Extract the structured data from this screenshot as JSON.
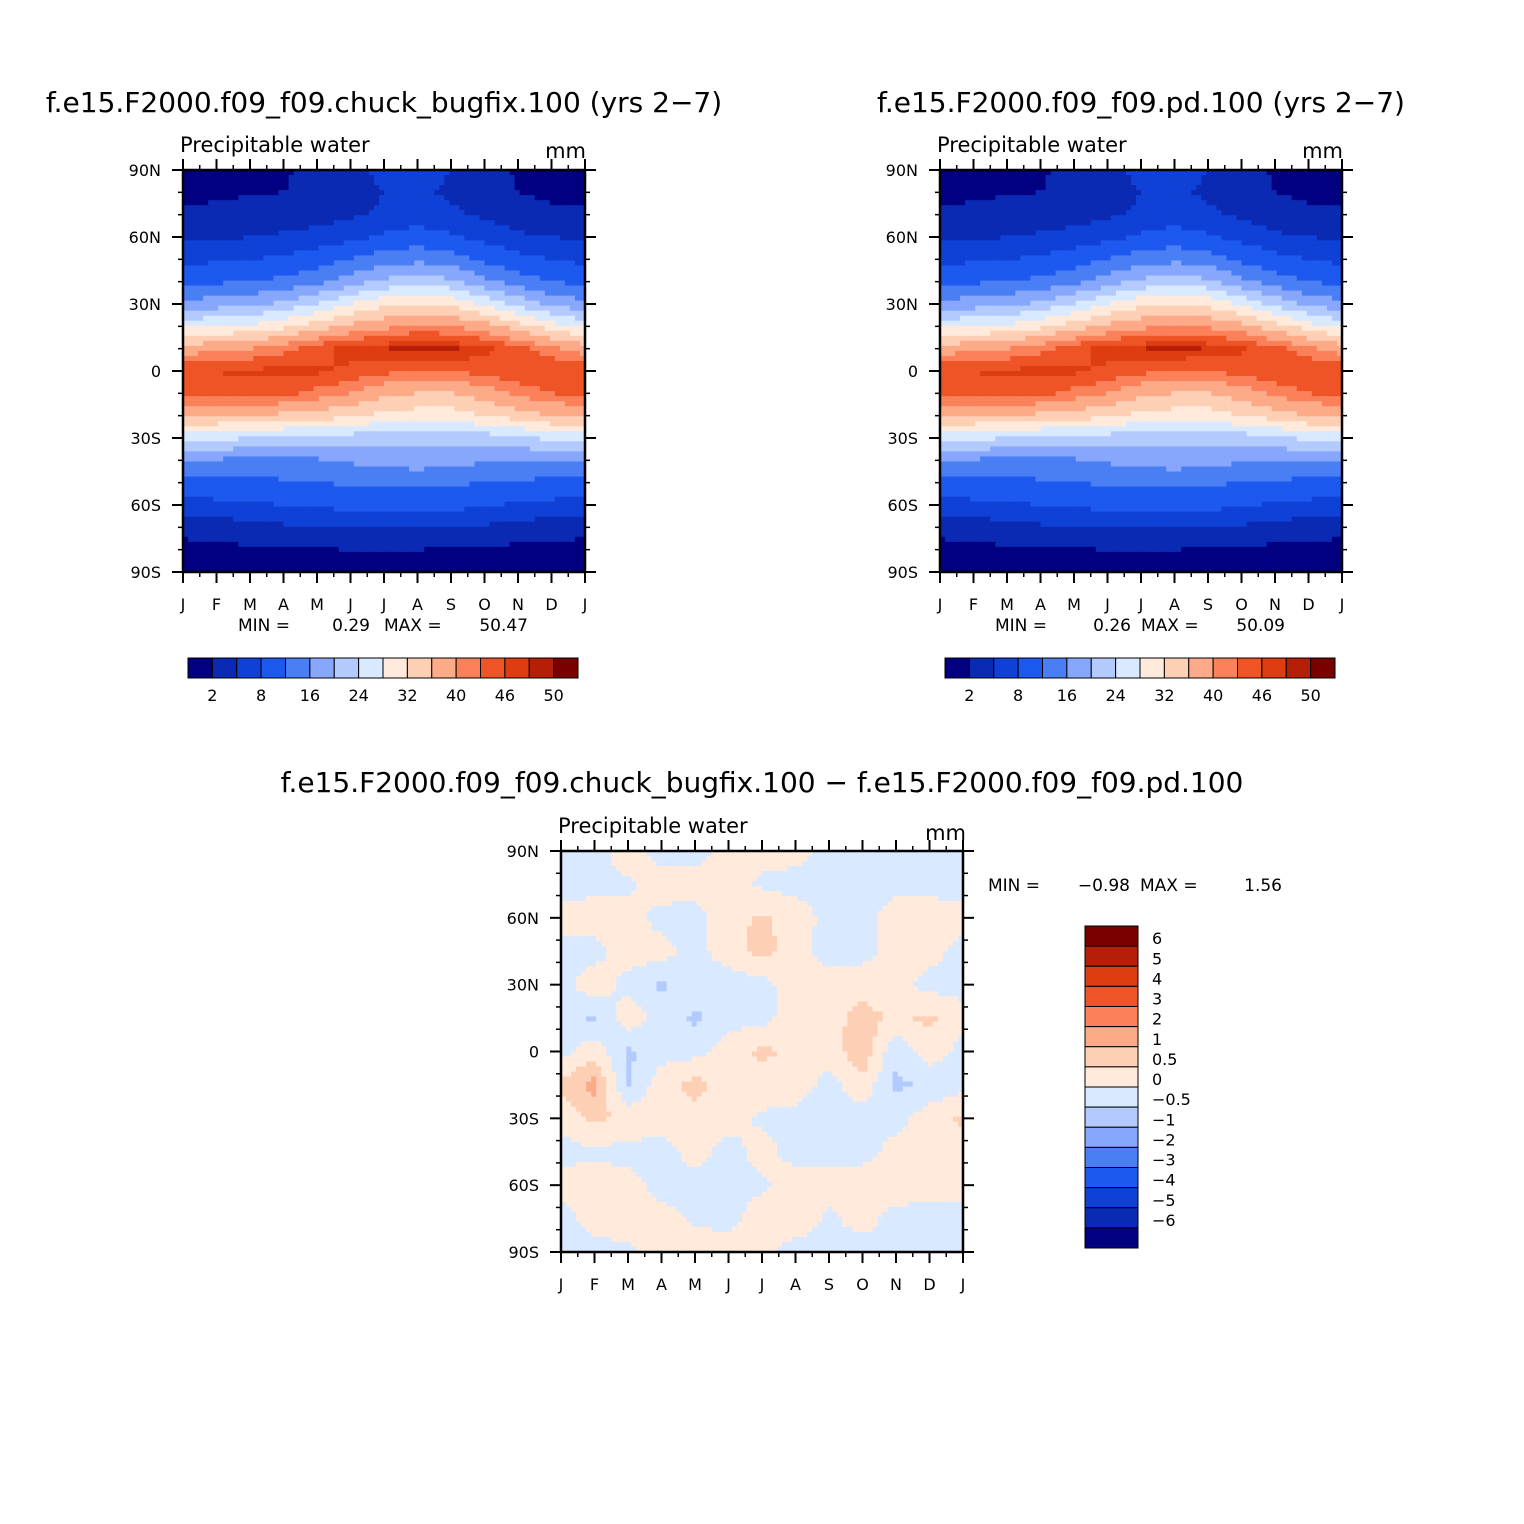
{
  "colors": {
    "abs_scale": [
      "#000080",
      "#0a2ab3",
      "#0f41d7",
      "#1d58ef",
      "#4a7ef5",
      "#86a7fb",
      "#b3caff",
      "#d9e9ff",
      "#ffeadb",
      "#fdcfb5",
      "#fcaa87",
      "#fa815a",
      "#ef5427",
      "#dd3d10",
      "#b51f07",
      "#7a0000"
    ],
    "diff_scale": [
      "#000080",
      "#0a2ab3",
      "#0f41d7",
      "#1d58ef",
      "#4a7ef5",
      "#86a7fb",
      "#b3caff",
      "#d9e9ff",
      "#ffeadb",
      "#fdcfb5",
      "#fcaa87",
      "#fa815a",
      "#ef5427",
      "#dd3d10",
      "#b51f07",
      "#7a0000"
    ]
  },
  "chart_data": [
    {
      "type": "heatmap",
      "title": "f.e15.F2000.f09_f09.chuck_bugfix.100 (yrs 2−7)",
      "subtitle": "Precipitable water",
      "units": "mm",
      "x_ticks": [
        "J",
        "F",
        "M",
        "A",
        "M",
        "J",
        "J",
        "A",
        "S",
        "O",
        "N",
        "D",
        "J"
      ],
      "y_ticks": [
        "90N",
        "60N",
        "30N",
        "0",
        "30S",
        "60S",
        "90S"
      ],
      "ylim": [
        -90,
        90
      ],
      "stats": {
        "min_label": "MIN =",
        "min": "0.29",
        "max_label": "MAX =",
        "max": "50.47"
      },
      "colorbar_labels": [
        "2",
        "8",
        "16",
        "24",
        "32",
        "40",
        "46",
        "50"
      ],
      "latitudes": [
        -90,
        -80,
        -70,
        -60,
        -50,
        -40,
        -30,
        -20,
        -10,
        0,
        10,
        20,
        30,
        40,
        50,
        60,
        70,
        80,
        90
      ],
      "months": [
        "J",
        "F",
        "M",
        "A",
        "M",
        "J",
        "J",
        "A",
        "S",
        "O",
        "N",
        "D",
        "J"
      ],
      "values": [
        [
          0.3,
          0.3,
          0.3,
          0.3,
          0.3,
          0.3,
          0.3,
          0.3,
          0.3,
          0.3,
          0.3,
          0.3,
          0.3
        ],
        [
          1,
          1.2,
          1.6,
          1.8,
          1.9,
          2,
          2,
          2,
          1.8,
          1.6,
          1.2,
          1,
          1
        ],
        [
          3,
          3.5,
          4,
          4.5,
          4.8,
          5,
          5,
          5,
          4.8,
          4.5,
          4,
          3.5,
          3
        ],
        [
          6.5,
          7,
          7.5,
          8,
          8.5,
          9,
          9.5,
          9.5,
          9,
          8.5,
          7.5,
          7,
          6.5
        ],
        [
          10.5,
          11,
          11,
          11.5,
          12,
          12.5,
          13,
          13,
          12.5,
          12,
          11.5,
          11,
          10.5
        ],
        [
          16,
          15.5,
          15,
          15,
          15.5,
          16.5,
          17.5,
          18,
          17.5,
          16.5,
          16,
          16,
          16
        ],
        [
          26,
          25,
          24,
          23,
          22.5,
          22,
          21,
          21,
          21,
          22,
          23,
          25,
          26
        ],
        [
          36,
          36,
          36,
          35,
          34,
          33,
          31,
          30,
          30,
          32,
          34,
          36,
          36
        ],
        [
          44,
          45,
          45,
          44,
          42,
          40,
          37,
          36,
          36,
          38,
          41,
          43,
          44
        ],
        [
          46,
          46,
          46.5,
          47,
          46.5,
          45.5,
          44,
          43,
          43,
          44.5,
          45.5,
          46,
          46
        ],
        [
          38,
          39,
          40,
          42,
          45,
          47,
          48,
          49,
          48.5,
          47,
          44,
          41,
          38
        ],
        [
          27,
          28,
          29,
          31,
          34,
          37,
          39,
          41,
          40,
          38,
          34,
          30,
          27
        ],
        [
          17,
          18,
          19,
          21,
          24,
          28,
          31,
          32,
          31,
          27,
          23,
          19,
          17
        ],
        [
          11,
          11.5,
          12,
          13,
          15,
          18,
          21,
          22,
          21,
          17,
          14,
          12,
          11
        ],
        [
          7,
          7.5,
          8,
          8.5,
          10,
          12,
          14,
          15,
          14,
          11,
          9,
          8,
          7
        ],
        [
          4.5,
          4.5,
          5,
          5.5,
          6,
          7,
          8.5,
          9.5,
          8.5,
          7,
          5.5,
          5,
          4.5
        ],
        [
          2.5,
          2.5,
          3,
          3.3,
          3.8,
          4.5,
          5.5,
          6.5,
          5.5,
          4.5,
          3.3,
          2.5,
          2.5
        ],
        [
          1.5,
          1.6,
          1.8,
          2,
          2.5,
          3.5,
          5,
          5.5,
          4.5,
          3.5,
          2,
          1.5,
          1.5
        ],
        [
          1.2,
          1.3,
          1.5,
          1.8,
          2.5,
          4,
          6,
          6.5,
          5,
          3,
          1.7,
          1.3,
          1.2
        ]
      ]
    },
    {
      "type": "heatmap",
      "title": "f.e15.F2000.f09_f09.pd.100 (yrs 2−7)",
      "subtitle": "Precipitable water",
      "units": "mm",
      "x_ticks": [
        "J",
        "F",
        "M",
        "A",
        "M",
        "J",
        "J",
        "A",
        "S",
        "O",
        "N",
        "D",
        "J"
      ],
      "y_ticks": [
        "90N",
        "60N",
        "30N",
        "0",
        "30S",
        "60S",
        "90S"
      ],
      "ylim": [
        -90,
        90
      ],
      "stats": {
        "min_label": "MIN =",
        "min": "0.26",
        "max_label": "MAX =",
        "max": "50.09"
      },
      "colorbar_labels": [
        "2",
        "8",
        "16",
        "24",
        "32",
        "40",
        "46",
        "50"
      ],
      "latitudes": [
        -90,
        -80,
        -70,
        -60,
        -50,
        -40,
        -30,
        -20,
        -10,
        0,
        10,
        20,
        30,
        40,
        50,
        60,
        70,
        80,
        90
      ],
      "months": [
        "J",
        "F",
        "M",
        "A",
        "M",
        "J",
        "J",
        "A",
        "S",
        "O",
        "N",
        "D",
        "J"
      ],
      "values": [
        [
          0.3,
          0.3,
          0.3,
          0.3,
          0.3,
          0.3,
          0.3,
          0.3,
          0.3,
          0.3,
          0.3,
          0.3,
          0.3
        ],
        [
          1,
          1.2,
          1.6,
          1.8,
          1.9,
          2,
          2,
          2,
          1.8,
          1.6,
          1.2,
          1,
          1
        ],
        [
          3,
          3.5,
          4,
          4.5,
          4.8,
          5,
          5,
          5,
          4.8,
          4.5,
          4,
          3.5,
          3
        ],
        [
          6.5,
          7,
          7.5,
          8,
          8.5,
          9,
          9.5,
          9.5,
          9,
          8.5,
          7.5,
          7,
          6.5
        ],
        [
          10.5,
          11,
          11,
          11.5,
          12,
          12.5,
          13,
          13,
          12.5,
          12,
          11.5,
          11,
          10.5
        ],
        [
          16,
          15.5,
          15,
          15,
          15.5,
          16.5,
          17.5,
          18,
          17.5,
          16.5,
          16,
          16,
          16
        ],
        [
          26,
          25,
          24,
          23,
          22.5,
          22,
          21,
          21,
          21,
          22,
          23,
          25,
          26
        ],
        [
          36,
          36,
          36,
          35,
          34,
          33,
          31,
          30,
          30,
          32,
          34,
          36,
          36
        ],
        [
          44,
          45,
          45,
          44,
          42,
          40,
          37,
          36,
          36,
          38,
          41,
          43,
          44
        ],
        [
          46,
          46,
          46.5,
          47,
          46.5,
          45.5,
          44,
          43,
          43,
          44.5,
          45.5,
          46,
          46
        ],
        [
          38,
          39,
          40,
          42,
          45,
          47,
          48,
          48.5,
          48,
          46.5,
          44,
          41,
          38
        ],
        [
          27,
          28,
          29,
          31,
          34,
          37,
          39,
          40.5,
          39.5,
          37.5,
          34,
          30,
          27
        ],
        [
          17,
          18,
          19,
          21,
          24,
          28,
          31,
          32,
          31,
          27,
          23,
          19,
          17
        ],
        [
          11,
          11.5,
          12,
          13,
          15,
          18,
          21,
          22,
          21,
          17,
          14,
          12,
          11
        ],
        [
          7,
          7.5,
          8,
          8.5,
          10,
          12,
          14,
          15,
          14,
          11,
          9,
          8,
          7
        ],
        [
          4.5,
          4.5,
          5,
          5.5,
          6,
          7,
          8.5,
          9.5,
          8.5,
          7,
          5.5,
          5,
          4.5
        ],
        [
          2.5,
          2.5,
          3,
          3.3,
          3.8,
          4.5,
          5.5,
          6.5,
          5.5,
          4.5,
          3.3,
          2.5,
          2.5
        ],
        [
          1.5,
          1.6,
          1.8,
          2,
          2.5,
          3.5,
          5,
          5.5,
          4.5,
          3.5,
          2,
          1.5,
          1.5
        ],
        [
          1.2,
          1.3,
          1.5,
          1.8,
          2.5,
          4,
          6,
          6.5,
          5,
          3,
          1.7,
          1.3,
          1.2
        ]
      ]
    },
    {
      "type": "heatmap",
      "title": "f.e15.F2000.f09_f09.chuck_bugfix.100 − f.e15.F2000.f09_f09.pd.100",
      "subtitle": "Precipitable water",
      "units": "mm",
      "x_ticks": [
        "J",
        "F",
        "M",
        "A",
        "M",
        "J",
        "J",
        "A",
        "S",
        "O",
        "N",
        "D",
        "J"
      ],
      "y_ticks": [
        "90N",
        "60N",
        "30N",
        "0",
        "30S",
        "60S",
        "90S"
      ],
      "ylim": [
        -90,
        90
      ],
      "stats": {
        "min_label": "MIN =",
        "min": "−0.98",
        "max_label": "MAX =",
        "max": "1.56"
      },
      "colorbar_labels": [
        "6",
        "5",
        "4",
        "3",
        "2",
        "1",
        "0.5",
        "0",
        "−0.5",
        "−1",
        "−2",
        "−3",
        "−4",
        "−5",
        "−6"
      ],
      "latitudes": [
        -90,
        -75,
        -60,
        -45,
        -30,
        -15,
        0,
        15,
        30,
        45,
        60,
        75,
        90
      ],
      "months": [
        "J",
        "F",
        "M",
        "A",
        "M",
        "J",
        "J",
        "A",
        "S",
        "O",
        "N",
        "D",
        "J"
      ],
      "values": [
        [
          -0.2,
          -0.2,
          -0.1,
          0.2,
          0.3,
          0.3,
          0.1,
          -0.2,
          -0.2,
          -0.2,
          -0.2,
          -0.2,
          -0.2
        ],
        [
          -0.2,
          0.2,
          0.3,
          0.2,
          -0.1,
          -0.2,
          0.3,
          0.3,
          -0.1,
          0.2,
          -0.2,
          -0.2,
          -0.2
        ],
        [
          0.2,
          0.3,
          0.2,
          -0.2,
          -0.2,
          -0.2,
          -0.1,
          0.3,
          0.2,
          0.3,
          0.3,
          0.2,
          0.2
        ],
        [
          -0.2,
          -0.1,
          -0.2,
          -0.2,
          0.2,
          -0.2,
          0.2,
          -0.2,
          -0.2,
          -0.2,
          0.2,
          0.3,
          0.2
        ],
        [
          0.2,
          0.6,
          0.4,
          0.2,
          0.3,
          0.2,
          -0.1,
          -0.2,
          -0.3,
          -0.2,
          -0.2,
          0.3,
          0.6
        ],
        [
          0.6,
          1.2,
          -0.6,
          0.3,
          0.7,
          0.2,
          0.3,
          0.3,
          -0.2,
          0.3,
          -0.6,
          -0.4,
          -0.2
        ],
        [
          -0.2,
          0.3,
          -0.6,
          -0.2,
          -0.2,
          0.3,
          0.6,
          0.4,
          0.2,
          0.9,
          -0.4,
          0.3,
          -0.2
        ],
        [
          -0.2,
          -0.6,
          0.3,
          -0.2,
          -0.6,
          -0.2,
          -0.2,
          0.3,
          0.3,
          0.7,
          0.4,
          0.6,
          0.2
        ],
        [
          -0.2,
          0.3,
          -0.2,
          -0.6,
          -0.2,
          -0.3,
          -0.2,
          0.3,
          0.2,
          0.3,
          0.2,
          -0.2,
          -0.2
        ],
        [
          -0.2,
          -0.2,
          0.3,
          0.2,
          -0.2,
          0.3,
          0.7,
          0.2,
          -0.2,
          -0.2,
          0.2,
          0.2,
          -0.2
        ],
        [
          0.2,
          0.3,
          0.2,
          -0.2,
          -0.2,
          0.3,
          0.6,
          0.3,
          -0.2,
          -0.2,
          0.3,
          0.3,
          0.2
        ],
        [
          -0.2,
          -0.2,
          -0.1,
          0.3,
          0.2,
          0.2,
          -0.1,
          -0.2,
          -0.2,
          -0.2,
          -0.2,
          -0.2,
          -0.2
        ],
        [
          -0.2,
          -0.2,
          0.3,
          -0.2,
          -0.2,
          0.2,
          0.2,
          0.2,
          -0.2,
          -0.2,
          -0.2,
          -0.2,
          -0.2
        ]
      ]
    }
  ]
}
